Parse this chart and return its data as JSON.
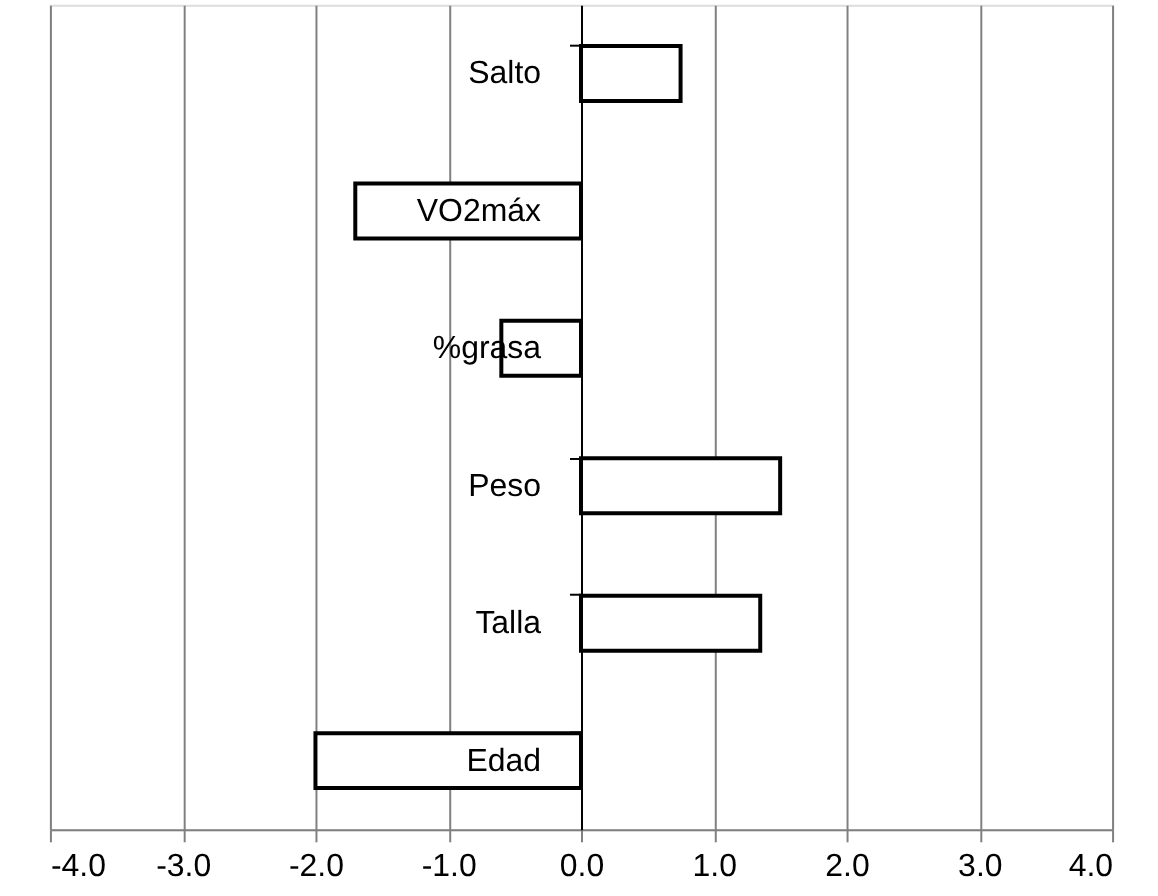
{
  "chart_data": {
    "type": "bar",
    "orientation": "horizontal",
    "categories": [
      "Salto",
      "VO2máx",
      "%grasa",
      "Peso",
      "Talla",
      "Edad"
    ],
    "values": [
      0.75,
      -1.7,
      -0.6,
      1.5,
      1.35,
      -2.0
    ],
    "color": "#ffffff",
    "xlim": [
      -4,
      4
    ],
    "xticks": [
      {
        "value": -4,
        "label": "-4.0"
      },
      {
        "value": -3,
        "label": "-3.0"
      },
      {
        "value": -2,
        "label": "-2.0"
      },
      {
        "value": -1,
        "label": "-1.0"
      },
      {
        "value": 0,
        "label": "0.0"
      },
      {
        "value": 1,
        "label": "1.0"
      },
      {
        "value": 2,
        "label": "2.0"
      },
      {
        "value": 3,
        "label": "3.0"
      },
      {
        "value": 4,
        "label": "4.0"
      }
    ],
    "grid": "x"
  }
}
